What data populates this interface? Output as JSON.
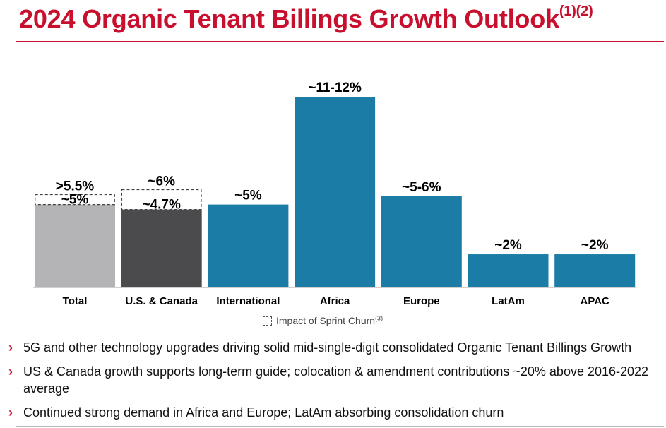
{
  "page": {
    "title": "2024 Organic Tenant Billings Growth Outlook",
    "title_sup": "(1)(2)"
  },
  "legend": {
    "label": "Impact of Sprint Churn",
    "sup": "(3)"
  },
  "bullets": [
    {
      "text": "5G and other technology upgrades driving solid mid-single-digit consolidated Organic Tenant Billings Growth"
    },
    {
      "text": "US & Canada growth supports long-term guide; colocation & amendment contributions ~20% above 2016-2022 average"
    },
    {
      "text": "Continued strong demand in Africa and Europe; LatAm absorbing consolidation churn"
    }
  ],
  "chart_data": {
    "type": "bar",
    "title": "2024 Organic Tenant Billings Growth Outlook",
    "ylim": [
      0,
      12
    ],
    "categories": [
      "Total",
      "U.S. & Canada",
      "International",
      "Africa",
      "Europe",
      "LatAm",
      "APAC"
    ],
    "values": [
      5.0,
      4.7,
      5.0,
      11.5,
      5.5,
      2.0,
      2.0
    ],
    "sprint_churn_impact": [
      0.6,
      1.2,
      0,
      0,
      0,
      0,
      0
    ],
    "value_labels": [
      "~5%",
      "~4.7%",
      "~5%",
      "~11-12%",
      "~5-6%",
      "~2%",
      "~2%"
    ],
    "top_labels": [
      ">5.5%",
      "~6%",
      "",
      "",
      "",
      "",
      ""
    ],
    "colors": [
      "#b4b4b6",
      "#4b4b4d",
      "#1b7ca5",
      "#1b7ca5",
      "#1b7ca5",
      "#1b7ca5",
      "#1b7ca5"
    ],
    "series": [
      {
        "name": "Organic Tenant Billings Growth",
        "values": [
          5.0,
          4.7,
          5.0,
          11.5,
          5.5,
          2.0,
          2.0
        ]
      },
      {
        "name": "Impact of Sprint Churn",
        "values": [
          0.6,
          1.2,
          0,
          0,
          0,
          0,
          0
        ]
      }
    ]
  }
}
